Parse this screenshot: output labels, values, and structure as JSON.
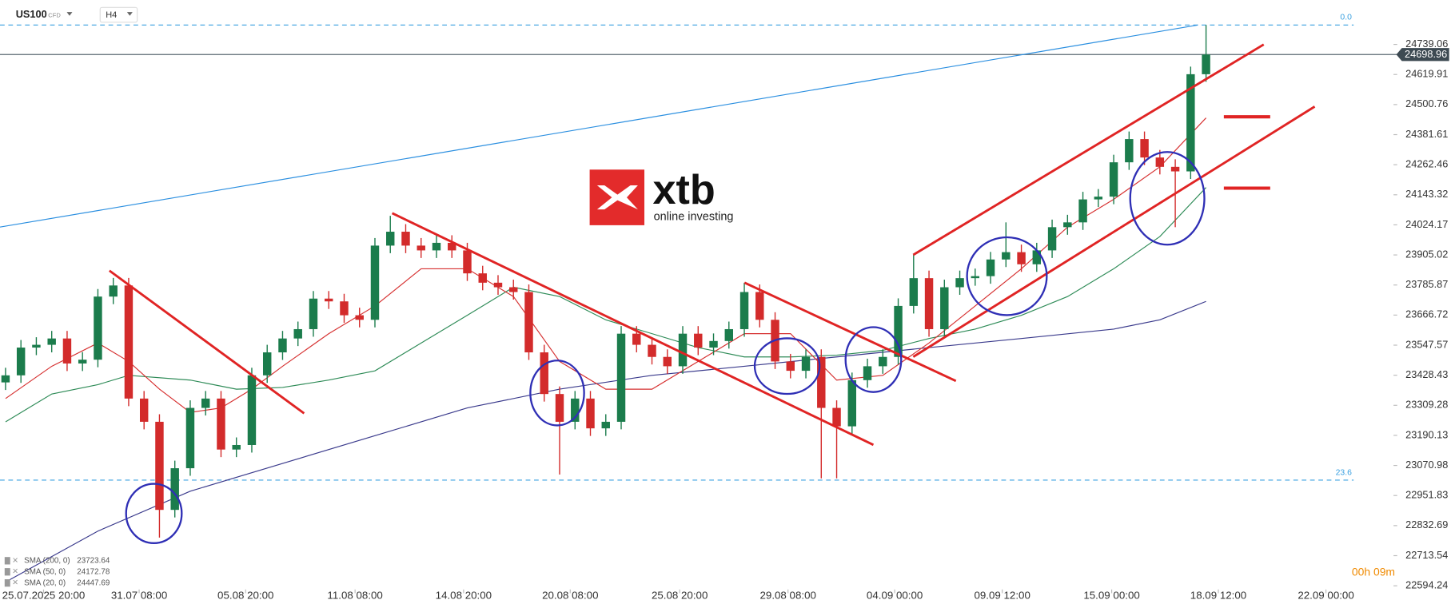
{
  "header": {
    "symbol": "US100",
    "instrument": "CFD",
    "timeframe": "H4"
  },
  "logo": {
    "name": "xtb",
    "tagline": "online investing"
  },
  "timer": "00h 09m",
  "chart_data": {
    "type": "candlestick",
    "open": [
      23400,
      23428,
      23538,
      23549,
      23574,
      23475,
      23490,
      23740,
      23784,
      23336,
      23244,
      22895,
      23060,
      23299,
      23336,
      23134,
      23152,
      23428,
      23519,
      23574,
      23611,
      23732,
      23721,
      23666,
      23648,
      23942,
      23997,
      23942,
      23923,
      23953,
      23923,
      23832,
      23795,
      23777,
      23758,
      23519,
      23354,
      23244,
      23336,
      23218,
      23244,
      23593,
      23549,
      23501,
      23464,
      23593,
      23538,
      23564,
      23611,
      23758,
      23648,
      23483,
      23446,
      23501,
      23299,
      23226,
      23409,
      23464,
      23501,
      23703,
      23813,
      23611,
      23777,
      23813,
      23821,
      23887,
      23916,
      23868,
      23923,
      24015,
      24034,
      24125,
      24136,
      24272,
      24364,
      24291,
      24254,
      24236,
      24621
    ],
    "high": [
      23458,
      23568,
      23579,
      23604,
      23604,
      23520,
      23770,
      23814,
      23814,
      23366,
      23274,
      23090,
      23329,
      23366,
      23366,
      23182,
      23458,
      23549,
      23604,
      23641,
      23762,
      23762,
      23751,
      23696,
      23972,
      24060,
      24027,
      23972,
      23983,
      23983,
      23953,
      23862,
      23825,
      23807,
      23788,
      23549,
      23384,
      23366,
      23366,
      23274,
      23623,
      23623,
      23579,
      23531,
      23623,
      23623,
      23594,
      23641,
      23795,
      23788,
      23678,
      23513,
      23531,
      23531,
      23329,
      23439,
      23494,
      23531,
      23733,
      23905,
      23843,
      23807,
      23843,
      23851,
      23917,
      24034,
      23946,
      23953,
      24045,
      24064,
      24155,
      24166,
      24302,
      24394,
      24394,
      24321,
      24284,
      24651,
      24816
    ],
    "low": [
      23370,
      23398,
      23508,
      23519,
      23445,
      23445,
      23460,
      23710,
      23306,
      23214,
      22785,
      22865,
      23030,
      23269,
      23104,
      23104,
      23122,
      23398,
      23489,
      23544,
      23581,
      23691,
      23636,
      23618,
      23618,
      23912,
      23912,
      23893,
      23893,
      23893,
      23802,
      23765,
      23747,
      23728,
      23489,
      23324,
      23035,
      23214,
      23188,
      23188,
      23214,
      23519,
      23471,
      23434,
      23434,
      23508,
      23508,
      23534,
      23581,
      23618,
      23453,
      23416,
      23416,
      23020,
      23020,
      23196,
      23379,
      23434,
      23471,
      23673,
      23581,
      23581,
      23747,
      23783,
      23791,
      23857,
      23838,
      23838,
      23893,
      23985,
      24004,
      24095,
      24106,
      24242,
      24261,
      24224,
      24015,
      24206,
      24591
    ],
    "close": [
      23428,
      23538,
      23549,
      23574,
      23475,
      23490,
      23740,
      23784,
      23336,
      23244,
      22895,
      23060,
      23299,
      23336,
      23134,
      23152,
      23428,
      23519,
      23574,
      23611,
      23732,
      23721,
      23666,
      23648,
      23942,
      23997,
      23942,
      23923,
      23953,
      23923,
      23832,
      23795,
      23777,
      23758,
      23519,
      23354,
      23244,
      23336,
      23218,
      23244,
      23593,
      23549,
      23501,
      23464,
      23593,
      23538,
      23564,
      23611,
      23758,
      23648,
      23483,
      23446,
      23501,
      23299,
      23226,
      23409,
      23464,
      23501,
      23703,
      23813,
      23611,
      23777,
      23813,
      23821,
      23887,
      23916,
      23868,
      23923,
      24015,
      24034,
      24125,
      24136,
      24272,
      24364,
      24291,
      24254,
      24236,
      24621,
      24699
    ],
    "colors": {
      "up": "#1b7c4c",
      "down": "#d32b2b"
    },
    "current_price": 24698.96,
    "xlim": [
      -0.36,
      90
    ],
    "ylim": [
      22565,
      24915
    ],
    "xticks": [
      {
        "value": 2.47,
        "label": "25.07.2025  20:00"
      },
      {
        "value": 8.68,
        "label": "31.07  08:00"
      },
      {
        "value": 15.6,
        "label": "05.08  20:00"
      },
      {
        "value": 22.71,
        "label": "11.08  08:00"
      },
      {
        "value": 29.76,
        "label": "14.08  20:00"
      },
      {
        "value": 36.69,
        "label": "20.08  08:00"
      },
      {
        "value": 43.8,
        "label": "25.08  20:00"
      },
      {
        "value": 50.84,
        "label": "29.08  08:00"
      },
      {
        "value": 57.77,
        "label": "04.09  00:00"
      },
      {
        "value": 64.76,
        "label": "09.09  12:00"
      },
      {
        "value": 71.87,
        "label": "15.09  00:00"
      },
      {
        "value": 78.8,
        "label": "18.09  12:00"
      },
      {
        "value": 85.79,
        "label": "22.09  00:00"
      }
    ],
    "yticks": [
      24739.06,
      24619.91,
      24500.76,
      24381.61,
      24262.46,
      24143.32,
      24024.17,
      23905.02,
      23785.87,
      23666.72,
      23547.57,
      23428.43,
      23309.28,
      23190.13,
      23070.98,
      22951.83,
      22832.69,
      22713.54,
      22594.24
    ],
    "fib_levels": [
      {
        "label": "0.0",
        "value": 24816
      },
      {
        "label": "23.6",
        "value": 23013
      }
    ],
    "series": [
      {
        "name": "SMA (200, 0)",
        "last": 23723.64,
        "color": "#3a3a8c",
        "x": [
          0,
          6,
          12,
          18,
          24,
          30,
          36,
          42,
          48,
          54,
          60,
          66,
          72,
          75,
          78
        ],
        "values": [
          22609,
          22811,
          22969,
          23079,
          23189,
          23299,
          23373,
          23428,
          23464,
          23501,
          23538,
          23574,
          23611,
          23648,
          23721
        ]
      },
      {
        "name": "SMA (50, 0)",
        "last": 24172.78,
        "color": "#2e8b57",
        "x": [
          0,
          3,
          6,
          8,
          12,
          15,
          18,
          21,
          24,
          27,
          30,
          33,
          36,
          39,
          42,
          45,
          48,
          51,
          54,
          57,
          60,
          63,
          66,
          69,
          72,
          75,
          78
        ],
        "values": [
          23244,
          23354,
          23391,
          23428,
          23409,
          23373,
          23380,
          23409,
          23446,
          23556,
          23666,
          23777,
          23740,
          23648,
          23593,
          23538,
          23501,
          23501,
          23508,
          23527,
          23574,
          23611,
          23666,
          23740,
          23850,
          23978,
          24172
        ]
      },
      {
        "name": "SMA (20, 0)",
        "last": 24447.69,
        "color": "#d63030",
        "x": [
          0,
          3,
          6,
          8,
          10,
          12,
          14,
          16,
          18,
          21,
          24,
          27,
          30,
          33,
          36,
          39,
          42,
          45,
          48,
          51,
          54,
          57,
          60,
          63,
          66,
          69,
          72,
          75,
          78
        ],
        "values": [
          23336,
          23464,
          23556,
          23483,
          23373,
          23281,
          23299,
          23373,
          23464,
          23593,
          23703,
          23850,
          23850,
          23740,
          23483,
          23373,
          23373,
          23483,
          23593,
          23593,
          23409,
          23428,
          23556,
          23703,
          23850,
          24015,
          24125,
          24254,
          24448
        ]
      }
    ]
  }
}
